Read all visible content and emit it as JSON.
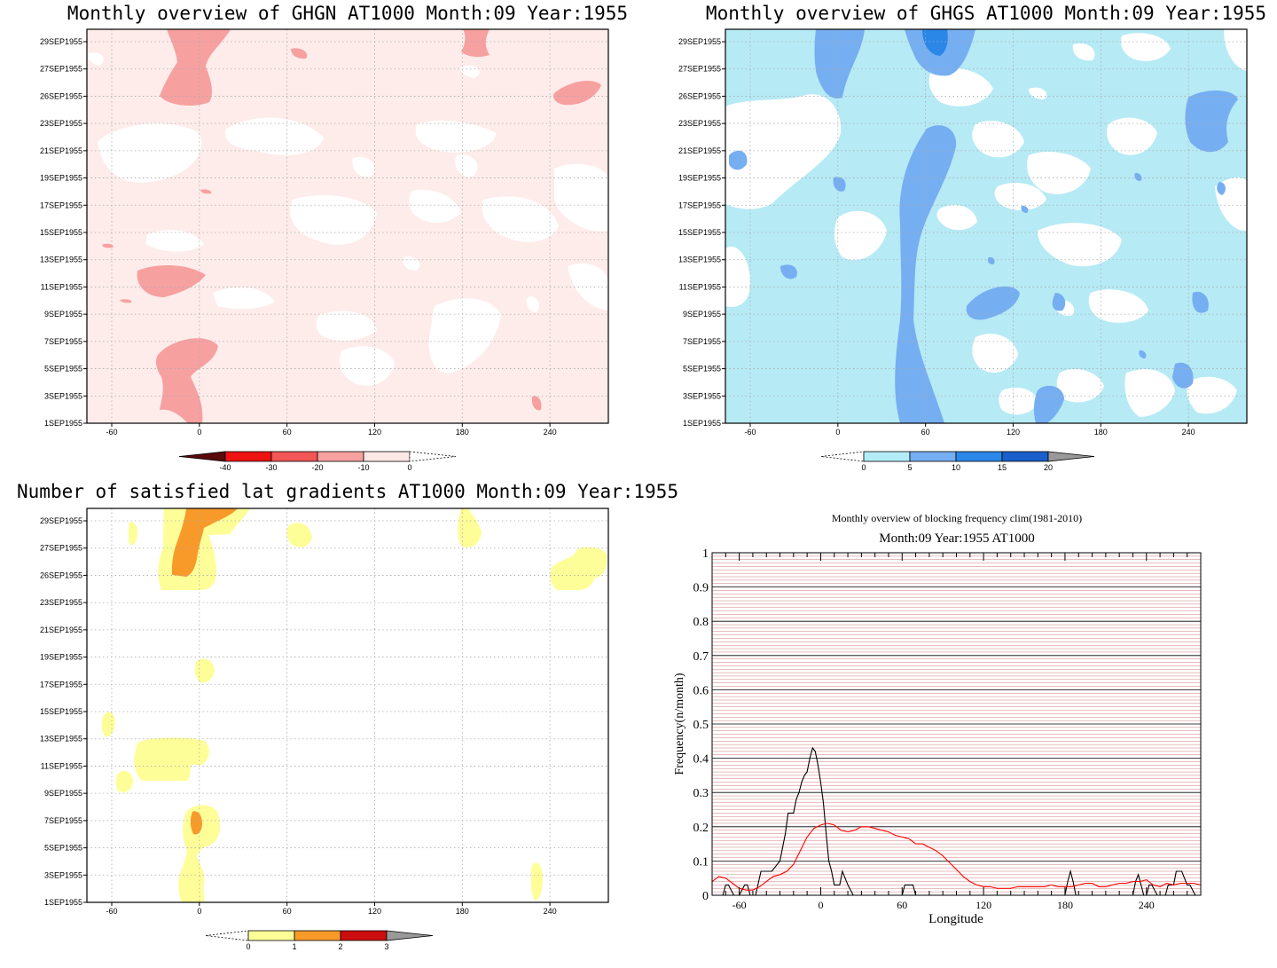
{
  "chart_data": [
    {
      "type": "heatmap",
      "title": "Monthly overview of GHGN AT1000 Month:09 Year:1955",
      "y_ticks": [
        "29SEP1955",
        "27SEP1955",
        "26SEP1955",
        "23SEP1955",
        "21SEP1955",
        "19SEP1955",
        "17SEP1955",
        "15SEP1955",
        "13SEP1955",
        "11SEP1955",
        "9SEP1955",
        "7SEP1955",
        "5SEP1955",
        "3SEP1955",
        "1SEP1955"
      ],
      "x_ticks": [
        "-60",
        "0",
        "60",
        "120",
        "180",
        "240"
      ],
      "xlim": [
        -77,
        280
      ],
      "colorbar": {
        "labels": [
          "-40",
          "-30",
          "-20",
          "-10",
          "0"
        ],
        "colors": [
          "#5a0a0a",
          "#ef1212",
          "#f25656",
          "#f7a0a0",
          "#fde8e6"
        ]
      },
      "background": "#fdecea",
      "grid": true
    },
    {
      "type": "heatmap",
      "title": "Monthly overview of GHGS AT1000 Month:09 Year:1955",
      "y_ticks": [
        "29SEP1955",
        "27SEP1955",
        "26SEP1955",
        "23SEP1955",
        "21SEP1955",
        "19SEP1955",
        "17SEP1955",
        "15SEP1955",
        "13SEP1955",
        "11SEP1955",
        "9SEP1955",
        "7SEP1955",
        "5SEP1955",
        "3SEP1955",
        "1SEP1955"
      ],
      "x_ticks": [
        "-60",
        "0",
        "60",
        "120",
        "180",
        "240"
      ],
      "xlim": [
        -77,
        280
      ],
      "colorbar": {
        "labels": [
          "0",
          "5",
          "10",
          "15",
          "20"
        ],
        "colors": [
          "#b3ecf7",
          "#76aef2",
          "#2a87e8",
          "#1a5fcc",
          "#999999"
        ]
      },
      "background": "#b6eaf5",
      "grid": true
    },
    {
      "type": "heatmap",
      "title": "Number of satisfied lat gradients AT1000 Month:09 Year:1955",
      "y_ticks": [
        "29SEP1955",
        "27SEP1955",
        "26SEP1955",
        "23SEP1955",
        "21SEP1955",
        "19SEP1955",
        "17SEP1955",
        "15SEP1955",
        "13SEP1955",
        "11SEP1955",
        "9SEP1955",
        "7SEP1955",
        "5SEP1955",
        "3SEP1955",
        "1SEP1955"
      ],
      "x_ticks": [
        "-60",
        "0",
        "60",
        "120",
        "180",
        "240"
      ],
      "xlim": [
        -77,
        280
      ],
      "colorbar": {
        "labels": [
          "0",
          "1",
          "2",
          "3"
        ],
        "colors": [
          "#fefe99",
          "#f89a2a",
          "#cc0d0d",
          "#999999"
        ]
      },
      "background": "#ffffff",
      "grid": true
    },
    {
      "type": "line",
      "title": "Monthly overview of blocking frequency clim(1981-2010)",
      "subtitle": "Month:09 Year:1955  AT1000",
      "xlabel": "Longitude",
      "ylabel": "Frequency(n/month)",
      "xlim": [
        -80,
        280
      ],
      "ylim": [
        0,
        1
      ],
      "x_ticks": [
        "-60",
        "0",
        "60",
        "120",
        "180",
        "240"
      ],
      "y_ticks": [
        "0",
        "0.1",
        "0.2",
        "0.3",
        "0.4",
        "0.5",
        "0.6",
        "0.7",
        "0.8",
        "0.9",
        "1"
      ],
      "grid": true,
      "series": [
        {
          "color": "#000000",
          "x": [
            -80,
            -72,
            -70,
            -68,
            -64,
            -60,
            -56,
            -54,
            -52,
            -48,
            -44,
            -36,
            -30,
            -26,
            -24,
            -20,
            -18,
            -16,
            -14,
            -12,
            -10,
            -8,
            -6,
            -4,
            -2,
            0,
            2,
            4,
            6,
            8,
            10,
            14,
            16,
            20,
            24,
            28,
            60,
            62,
            68,
            70,
            180,
            182,
            184,
            186,
            188,
            230,
            232,
            234,
            236,
            238,
            240,
            242,
            244,
            248,
            254,
            256,
            260,
            262,
            266,
            270,
            272,
            276
          ],
          "y": [
            0,
            0,
            0.03,
            0.03,
            0,
            0,
            0.03,
            0.03,
            0,
            0,
            0.07,
            0.07,
            0.1,
            0.18,
            0.24,
            0.24,
            0.28,
            0.3,
            0.33,
            0.35,
            0.36,
            0.4,
            0.43,
            0.42,
            0.38,
            0.33,
            0.27,
            0.18,
            0.1,
            0.07,
            0.03,
            0.03,
            0.07,
            0.03,
            0,
            0,
            0,
            0.03,
            0.03,
            0,
            0,
            0.04,
            0.07,
            0.04,
            0,
            0,
            0.04,
            0.06,
            0.03,
            0,
            0,
            0.03,
            0.03,
            0,
            0,
            0.03,
            0.03,
            0.07,
            0.07,
            0.03,
            0.03,
            0
          ]
        },
        {
          "color": "#ff0000",
          "x": [
            -80,
            -75,
            -70,
            -65,
            -60,
            -55,
            -50,
            -45,
            -40,
            -35,
            -30,
            -25,
            -20,
            -15,
            -10,
            -5,
            0,
            5,
            10,
            15,
            20,
            25,
            30,
            35,
            40,
            45,
            50,
            55,
            60,
            65,
            70,
            75,
            80,
            85,
            90,
            95,
            100,
            105,
            110,
            115,
            120,
            125,
            130,
            135,
            140,
            145,
            150,
            155,
            160,
            165,
            170,
            175,
            180,
            185,
            190,
            195,
            200,
            205,
            210,
            215,
            220,
            225,
            230,
            235,
            240,
            245,
            250,
            255,
            260,
            265,
            270,
            275,
            280
          ],
          "y": [
            0.04,
            0.055,
            0.05,
            0.035,
            0.02,
            0.015,
            0.015,
            0.025,
            0.04,
            0.055,
            0.06,
            0.07,
            0.09,
            0.13,
            0.17,
            0.195,
            0.205,
            0.21,
            0.205,
            0.19,
            0.185,
            0.19,
            0.2,
            0.2,
            0.195,
            0.19,
            0.185,
            0.175,
            0.17,
            0.165,
            0.15,
            0.15,
            0.14,
            0.13,
            0.115,
            0.095,
            0.075,
            0.055,
            0.04,
            0.03,
            0.025,
            0.025,
            0.02,
            0.02,
            0.02,
            0.025,
            0.025,
            0.025,
            0.025,
            0.025,
            0.03,
            0.025,
            0.025,
            0.025,
            0.03,
            0.035,
            0.035,
            0.025,
            0.025,
            0.03,
            0.035,
            0.035,
            0.04,
            0.04,
            0.045,
            0.03,
            0.025,
            0.035,
            0.03,
            0.035,
            0.035,
            0.035,
            0.03
          ]
        }
      ]
    }
  ]
}
